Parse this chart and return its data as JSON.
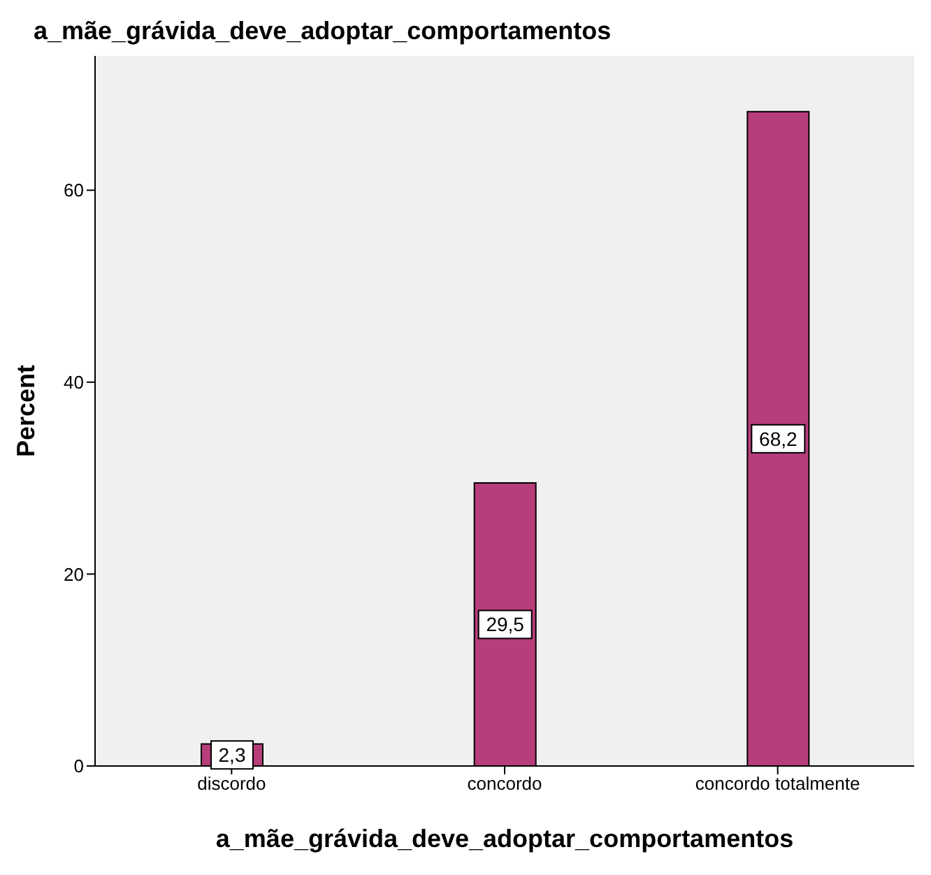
{
  "chart_data": {
    "type": "bar",
    "title": "a_mãe_grávida_deve_adoptar_comportamentos",
    "xlabel": "a_mãe_grávida_deve_adoptar_comportamentos",
    "ylabel": "Percent",
    "categories": [
      "discordo",
      "concordo",
      "concordo totalmente"
    ],
    "values": [
      2.3,
      29.5,
      68.2
    ],
    "value_labels": [
      "2,3",
      "29,5",
      "68,2"
    ],
    "color": "#b83d7b",
    "ylim": [
      0,
      74
    ],
    "yticks": [
      0,
      20,
      40,
      60
    ],
    "grid": false
  }
}
